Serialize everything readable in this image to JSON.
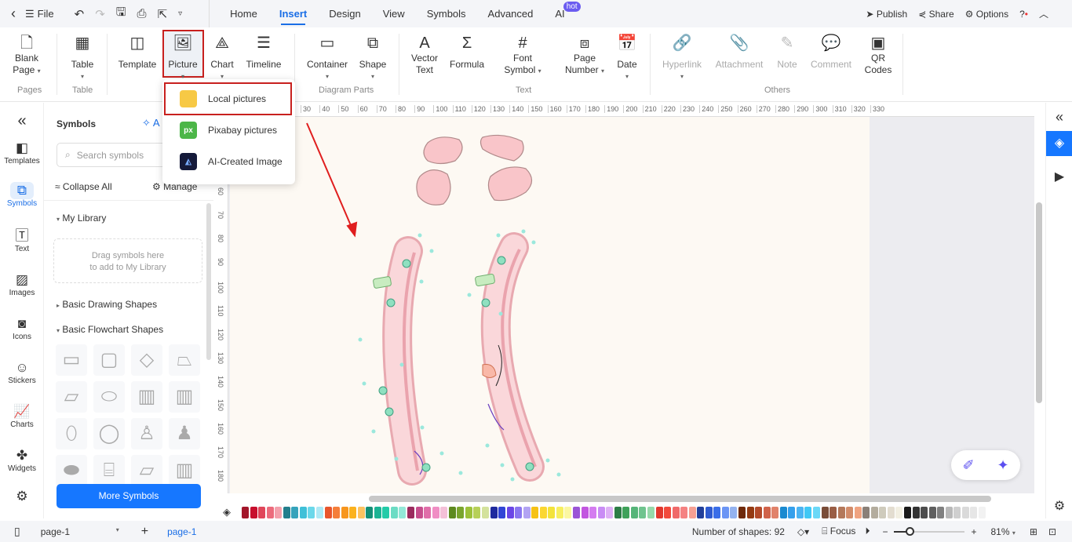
{
  "topbar": {
    "file": "File",
    "tabs": [
      "Home",
      "Insert",
      "Design",
      "View",
      "Symbols",
      "Advanced",
      "AI"
    ],
    "active_tab": "Insert",
    "hot_badge": "hot",
    "publish": "Publish",
    "share": "Share",
    "options": "Options"
  },
  "ribbon": {
    "buttons": [
      {
        "label1": "Blank",
        "label2": "Page",
        "icon": "blank-page-icon"
      },
      {
        "label1": "Table",
        "label2": "",
        "icon": "table-icon"
      },
      {
        "label1": "Template",
        "label2": "",
        "icon": "template-icon"
      },
      {
        "label1": "Picture",
        "label2": "",
        "icon": "picture-icon"
      },
      {
        "label1": "Chart",
        "label2": "",
        "icon": "chart-icon"
      },
      {
        "label1": "Timeline",
        "label2": "",
        "icon": "timeline-icon"
      },
      {
        "label1": "Container",
        "label2": "",
        "icon": "container-icon"
      },
      {
        "label1": "Shape",
        "label2": "",
        "icon": "shape-icon"
      },
      {
        "label1": "Vector",
        "label2": "Text",
        "icon": "vector-text-icon"
      },
      {
        "label1": "Formula",
        "label2": "",
        "icon": "formula-icon"
      },
      {
        "label1": "Font",
        "label2": "Symbol",
        "icon": "font-symbol-icon"
      },
      {
        "label1": "Page",
        "label2": "Number",
        "icon": "page-number-icon"
      },
      {
        "label1": "Date",
        "label2": "",
        "icon": "date-icon"
      },
      {
        "label1": "Hyperlink",
        "label2": "",
        "icon": "hyperlink-icon"
      },
      {
        "label1": "Attachment",
        "label2": "",
        "icon": "attachment-icon"
      },
      {
        "label1": "Note",
        "label2": "",
        "icon": "note-icon"
      },
      {
        "label1": "Comment",
        "label2": "",
        "icon": "comment-icon"
      },
      {
        "label1": "QR",
        "label2": "Codes",
        "icon": "qr-code-icon"
      }
    ],
    "groups": [
      "Pages",
      "Table",
      "Diagram Parts",
      "Text",
      "Others"
    ]
  },
  "picture_menu": [
    {
      "label": "Local pictures",
      "icon": "folder-icon"
    },
    {
      "label": "Pixabay pictures",
      "icon": "pixabay-icon",
      "badge": "px"
    },
    {
      "label": "AI-Created Image",
      "icon": "ai-image-icon"
    }
  ],
  "rail": [
    "Templates",
    "Symbols",
    "Text",
    "Images",
    "Icons",
    "Stickers",
    "Charts",
    "Widgets"
  ],
  "panel": {
    "title": "Symbols",
    "ai_label": "A",
    "search_placeholder": "Search symbols",
    "collapse_all": "Collapse All",
    "manage": "Manage",
    "my_library": "My Library",
    "drop_hint1": "Drag symbols here",
    "drop_hint2": "to add to My Library",
    "basic_drawing": "Basic Drawing Shapes",
    "basic_flowchart": "Basic Flowchart Shapes",
    "more_symbols": "More Symbols"
  },
  "ruler": {
    "top": [
      "30",
      "40",
      "50",
      "60",
      "70",
      "80",
      "90",
      "100",
      "110",
      "120",
      "130",
      "140",
      "150",
      "160",
      "170",
      "180",
      "190",
      "200",
      "210",
      "220",
      "230",
      "240",
      "250",
      "260",
      "270",
      "280",
      "290",
      "300",
      "310",
      "320",
      "330"
    ],
    "left": [
      "60",
      "70",
      "80",
      "90",
      "100",
      "110",
      "120",
      "130",
      "140",
      "150",
      "160",
      "170",
      "180"
    ]
  },
  "palette": [
    "#a3162a",
    "#c8102e",
    "#e0465a",
    "#ec6b7c",
    "#f4a0ac",
    "#237e8c",
    "#35a3bb",
    "#3fc0d8",
    "#6bd8ea",
    "#aee9f5",
    "#e8552c",
    "#f57e3a",
    "#f7961e",
    "#fbb21e",
    "#fdc361",
    "#158f77",
    "#1bb394",
    "#22cba8",
    "#6bdcc4",
    "#93e8d8",
    "#9b2b5e",
    "#c64d8c",
    "#e06ea9",
    "#f08ec4",
    "#f4c0d8",
    "#5d8a1f",
    "#7aa52e",
    "#9dc13a",
    "#b7d058",
    "#d4e29c",
    "#1f2a9e",
    "#3245d6",
    "#6b46e6",
    "#8a76f0",
    "#b2a3f3",
    "#f6c216",
    "#fbd731",
    "#f3e33a",
    "#f7ef5f",
    "#fbf7a0",
    "#9a55d6",
    "#c256e0",
    "#d47cf0",
    "#c98cf5",
    "#deb0f5",
    "#2d7d46",
    "#3fa25a",
    "#56b579",
    "#6fc48e",
    "#97d9aa",
    "#e2382e",
    "#f24a3c",
    "#f06a6a",
    "#f58282",
    "#f6a093",
    "#213f9a",
    "#2f5bd0",
    "#3a6ee8",
    "#6b95f5",
    "#94b3f0",
    "#6f2a0a",
    "#943a12",
    "#b34a2a",
    "#d0634a",
    "#e1826a",
    "#1a8ad0",
    "#34a0ec",
    "#4bb4f2",
    "#40c8f5",
    "#6ad8f7",
    "#7a4d38",
    "#9a5e45",
    "#b4785a",
    "#d38c6a",
    "#f0a380",
    "#8a8078",
    "#b4ad9e",
    "#cfcbbc",
    "#e3ddd0",
    "#f2efe2",
    "#1a1a1a",
    "#333333",
    "#4d4d4d",
    "#5f5f5f",
    "#808080",
    "#b8b8b8",
    "#cfcfcf",
    "#dadada",
    "#e6e6e6",
    "#f2f2f2"
  ],
  "status": {
    "page_select": "page-1",
    "page_tab": "page-1",
    "shape_count": "Number of shapes: 92",
    "focus": "Focus",
    "zoom": "81%",
    "zoom_fraction": 0.2
  },
  "colors": {
    "accent": "#1677ff",
    "highlight": "#c8201e"
  }
}
